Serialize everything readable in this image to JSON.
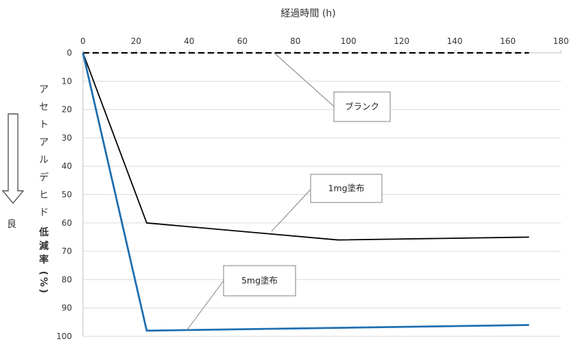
{
  "chart_data": {
    "type": "line",
    "xlabel": "経過時間 (h)",
    "ylabel": "アセトアルデヒド低減率(%)",
    "ylabel_regular": "アセトアルデヒド",
    "ylabel_bold": "低減率(%)",
    "xlim": [
      0,
      180
    ],
    "ylim": [
      0,
      100
    ],
    "y_inverted": true,
    "x_axis_position": "top",
    "x_ticks": [
      0,
      20,
      40,
      60,
      80,
      100,
      120,
      140,
      160,
      180
    ],
    "y_ticks": [
      0,
      10,
      20,
      30,
      40,
      50,
      60,
      70,
      80,
      90,
      100
    ],
    "grid": true,
    "series": [
      {
        "name": "ブランク",
        "color": "#000000",
        "dash": true,
        "x": [
          0,
          24,
          72,
          96,
          168
        ],
        "y": [
          0,
          0,
          0,
          0,
          0
        ]
      },
      {
        "name": "1mg塗布",
        "color": "#000000",
        "dash": false,
        "x": [
          0,
          24,
          96,
          168
        ],
        "y": [
          0,
          60,
          66,
          65
        ]
      },
      {
        "name": "5mg塗布",
        "color": "#1f6fb0",
        "dash": false,
        "x": [
          0,
          24,
          96,
          168
        ],
        "y": [
          0,
          98,
          97,
          96
        ]
      }
    ],
    "annotations": [
      {
        "text": "ブランク",
        "series": "ブランク",
        "x": 72,
        "y": 0
      },
      {
        "text": "1mg塗布",
        "series": "1mg塗布",
        "x": 71,
        "y": 63
      },
      {
        "text": "5mg塗布",
        "series": "5mg塗布",
        "x": 39,
        "y": 98
      }
    ]
  },
  "side": {
    "arrow_icon": "down-arrow-icon",
    "label": "良"
  }
}
